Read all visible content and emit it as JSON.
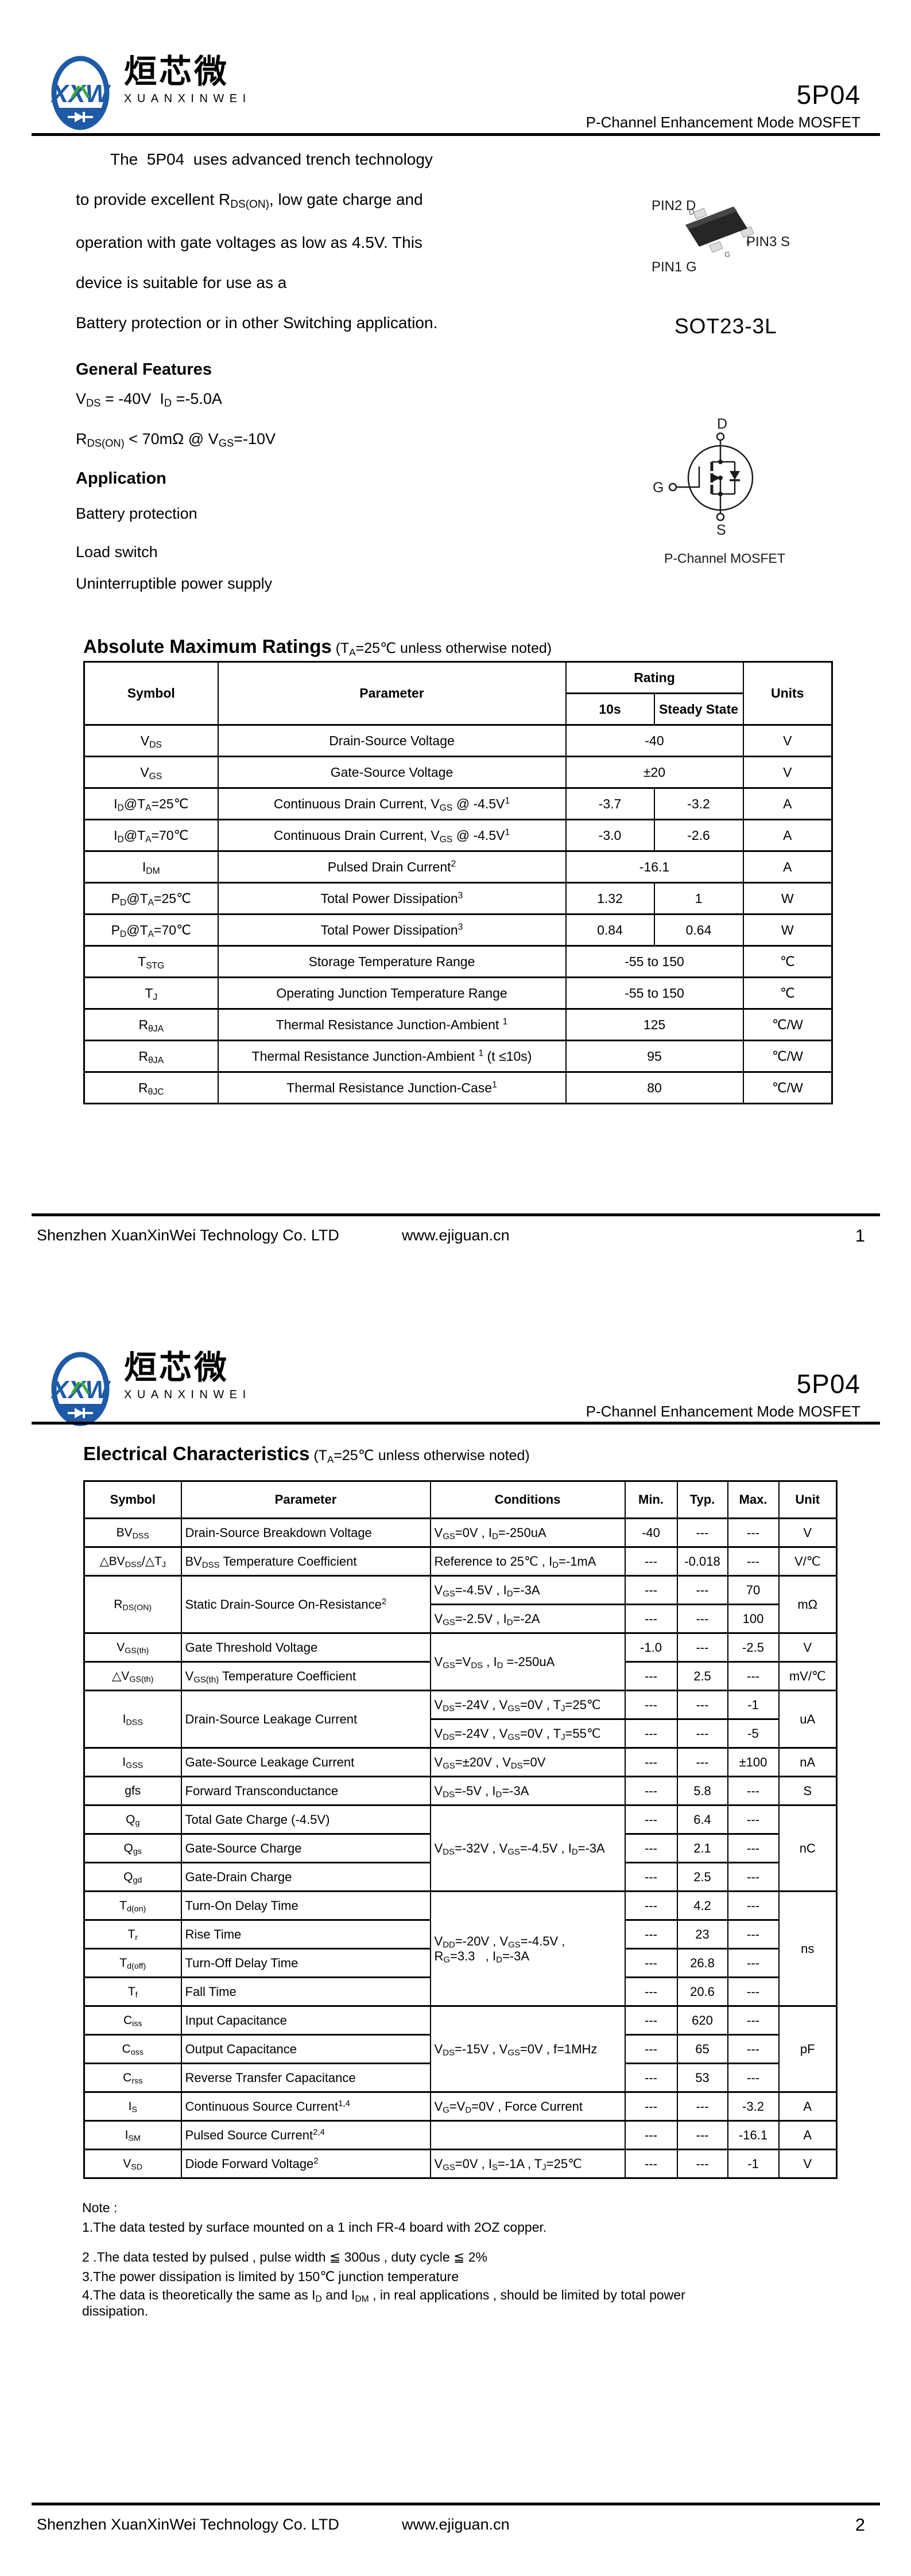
{
  "header": {
    "logo_mark": "XXW",
    "brand_cn": "烜芯微",
    "brand_en": "XUANXINWEI",
    "part_number": "5P04",
    "subtitle": "P-Channel Enhancement Mode MOSFET"
  },
  "intro": {
    "line1": "The  5P04  uses advanced trench technology",
    "line2": "to provide excellent R_{DS(ON)}, low gate charge and",
    "line3": "operation with gate voltages as low as 4.5V. This",
    "line4": "device is suitable for use as a",
    "line5": "Battery protection or in other Switching application."
  },
  "package": {
    "pin2_label": "PIN2 D",
    "pin3_label": "PIN3 S",
    "pin1_label": "PIN1 G",
    "name": "SOT23-3L",
    "pin_d": "D",
    "pin_s": "s",
    "pin_g": "G"
  },
  "mosfet_symbol": {
    "d": "D",
    "g": "G",
    "s": "S",
    "caption": "P-Channel MOSFET"
  },
  "features": {
    "title": "General Features",
    "item1": "V_{DS} = -40V  I_{D} =-5.0A",
    "item2": "R_{DS(ON)} < 70mΩ @ V_{GS}=-10V"
  },
  "application": {
    "title": "Application",
    "items": [
      "Battery protection",
      "Load switch",
      "Uninterruptible power supply"
    ]
  },
  "amr": {
    "title": "Absolute Maximum Ratings",
    "title_note": " (T_{A}=25℃ unless otherwise noted)",
    "headers": {
      "symbol": "Symbol",
      "parameter": "Parameter",
      "rating": "Rating",
      "t10s": "10s",
      "steady": "Steady State",
      "units": "Units"
    },
    "rows": [
      {
        "sym": "V_{DS}",
        "param": "Drain-Source Voltage",
        "r": "-40",
        "unit": "V"
      },
      {
        "sym": "V_{GS}",
        "param": "Gate-Source Voltage",
        "r": "±20",
        "unit": "V"
      },
      {
        "sym": "I_{D}@T_{A}=25℃",
        "param": "Continuous Drain Current, V_{GS} @ -4.5V^{1}",
        "r10": "-3.7",
        "rss": "-3.2",
        "unit": "A"
      },
      {
        "sym": "I_{D}@T_{A}=70℃",
        "param": "Continuous Drain Current, V_{GS} @ -4.5V^{1}",
        "r10": "-3.0",
        "rss": "-2.6",
        "unit": "A"
      },
      {
        "sym": "I_{DM}",
        "param": "Pulsed Drain Current^{2}",
        "r": "-16.1",
        "unit": "A"
      },
      {
        "sym": "P_{D}@T_{A}=25℃",
        "param": "Total Power Dissipation^{3}",
        "r10": "1.32",
        "rss": "1",
        "unit": "W"
      },
      {
        "sym": "P_{D}@T_{A}=70℃",
        "param": "Total Power Dissipation^{3}",
        "r10": "0.84",
        "rss": "0.64",
        "unit": "W"
      },
      {
        "sym": "T_{STG}",
        "param": "Storage Temperature Range",
        "r": "-55 to 150",
        "unit": "℃"
      },
      {
        "sym": "T_{J}",
        "param": "Operating Junction Temperature Range",
        "r": "-55 to 150",
        "unit": "℃"
      },
      {
        "sym": "R_{θJA}",
        "param": "Thermal Resistance Junction-Ambient ^{1}",
        "r": "125",
        "unit": "℃/W"
      },
      {
        "sym": "R_{θJA}",
        "param": "Thermal Resistance Junction-Ambient ^{1} (t ≤10s)",
        "r": "95",
        "unit": "℃/W"
      },
      {
        "sym": "R_{θJC}",
        "param": "Thermal Resistance Junction-Case^{1}",
        "r": "80",
        "unit": "℃/W"
      }
    ]
  },
  "ec": {
    "title": "Electrical Characteristics",
    "title_note": " (T_{A}=25℃ unless otherwise noted)",
    "headers": {
      "symbol": "Symbol",
      "parameter": "Parameter",
      "conditions": "Conditions",
      "min": "Min.",
      "typ": "Typ.",
      "max": "Max.",
      "unit": "Unit"
    },
    "rows": [
      {
        "sym": "BV_{DSS}",
        "param": "Drain-Source Breakdown Voltage",
        "cond": "V_{GS}=0V , I_{D}=-250uA",
        "min": "-40",
        "typ": "---",
        "max": "---",
        "unit": "V"
      },
      {
        "sym": "△BV_{DSS}/△T_{J}",
        "param": "BV_{DSS} Temperature Coefficient",
        "cond": "Reference to 25℃ , I_{D}=-1mA",
        "min": "---",
        "typ": "-0.018",
        "max": "---",
        "unit": "V/℃"
      },
      {
        "sym": "R_{DS(ON)}",
        "param": "Static Drain-Source On-Resistance^{2}",
        "cond": "V_{GS}=-4.5V , I_{D}=-3A",
        "min": "---",
        "typ": "---",
        "max": "70",
        "unit": "mΩ"
      },
      {
        "cond": "V_{GS}=-2.5V , I_{D}=-2A",
        "min": "---",
        "typ": "---",
        "max": "100"
      },
      {
        "sym": "V_{GS(th)}",
        "param": "Gate Threshold Voltage",
        "cond": "V_{GS}=V_{DS} , I_{D} =-250uA",
        "min": "-1.0",
        "typ": "---",
        "max": "-2.5",
        "unit": "V"
      },
      {
        "sym": "△V_{GS(th)}",
        "param": "V_{GS(th)} Temperature Coefficient",
        "min": "---",
        "typ": "2.5",
        "max": "---",
        "unit": "mV/℃"
      },
      {
        "sym": "I_{DSS}",
        "param": "Drain-Source Leakage Current",
        "cond": "V_{DS}=-24V , V_{GS}=0V , T_{J}=25℃",
        "min": "---",
        "typ": "---",
        "max": "-1",
        "unit": "uA"
      },
      {
        "cond": "V_{DS}=-24V , V_{GS}=0V , T_{J}=55℃",
        "min": "---",
        "typ": "---",
        "max": "-5"
      },
      {
        "sym": "I_{GSS}",
        "param": "Gate-Source Leakage Current",
        "cond": "V_{GS}=±20V , V_{DS}=0V",
        "min": "---",
        "typ": "---",
        "max": "±100",
        "unit": "nA"
      },
      {
        "sym": "gfs",
        "param": "Forward Transconductance",
        "cond": "V_{DS}=-5V , I_{D}=-3A",
        "min": "---",
        "typ": "5.8",
        "max": "---",
        "unit": "S"
      },
      {
        "sym": "Q_{g}",
        "param": "Total Gate Charge (-4.5V)",
        "cond": "V_{DS}=-32V , V_{GS}=-4.5V , I_{D}=-3A",
        "min": "---",
        "typ": "6.4",
        "max": "---",
        "unit": "nC"
      },
      {
        "sym": "Q_{gs}",
        "param": "Gate-Source Charge",
        "min": "---",
        "typ": "2.1",
        "max": "---"
      },
      {
        "sym": "Q_{gd}",
        "param": "Gate-Drain Charge",
        "min": "---",
        "typ": "2.5",
        "max": "---"
      },
      {
        "sym": "T_{d(on)}",
        "param": "Turn-On Delay Time",
        "cond1": "V_{DD}=-20V , V_{GS}=-4.5V ,",
        "cond2": "R_{G}=3.3   , I_{D}=-3A",
        "min": "---",
        "typ": "4.2",
        "max": "---",
        "unit": "ns"
      },
      {
        "sym": "T_{r}",
        "param": "Rise Time",
        "min": "---",
        "typ": "23",
        "max": "---"
      },
      {
        "sym": "T_{d(off)}",
        "param": "Turn-Off Delay Time",
        "min": "---",
        "typ": "26.8",
        "max": "---"
      },
      {
        "sym": "T_{f}",
        "param": "Fall Time",
        "min": "---",
        "typ": "20.6",
        "max": "---"
      },
      {
        "sym": "C_{iss}",
        "param": "Input Capacitance",
        "cond": "V_{DS}=-15V , V_{GS}=0V , f=1MHz",
        "min": "---",
        "typ": "620",
        "max": "---",
        "unit": "pF"
      },
      {
        "sym": "C_{oss}",
        "param": "Output Capacitance",
        "min": "---",
        "typ": "65",
        "max": "---"
      },
      {
        "sym": "C_{rss}",
        "param": "Reverse Transfer Capacitance",
        "min": "---",
        "typ": "53",
        "max": "---"
      },
      {
        "sym": "I_{S}",
        "param": "Continuous Source Current^{1,4}",
        "cond": "V_{G}=V_{D}=0V , Force Current",
        "min": "---",
        "typ": "---",
        "max": "-3.2",
        "unit": "A"
      },
      {
        "sym": "I_{SM}",
        "param": "Pulsed Source Current^{2,4}",
        "cond": "",
        "min": "---",
        "typ": "---",
        "max": "-16.1",
        "unit": "A"
      },
      {
        "sym": "V_{SD}",
        "param": "Diode Forward Voltage^{2}",
        "cond": "V_{GS}=0V , I_{S}=-1A , T_{J}=25℃",
        "min": "---",
        "typ": "---",
        "max": "-1",
        "unit": "V"
      }
    ]
  },
  "notes": {
    "label": "Note :",
    "n1": "1.The data tested by surface mounted on a 1 inch FR-4 board with 2OZ copper.",
    "n2": "2 .The data tested by pulsed , pulse width ≦ 300us , duty cycle ≦ 2%",
    "n3": "3.The power dissipation is limited by 150℃ junction temperature",
    "n4": "4.The data is theoretically the same as I_{D} and I_{DM} , in real applications , should be limited by total power",
    "n4b": "dissipation."
  },
  "footer": {
    "company": "Shenzhen XuanXinWei Technology Co. LTD",
    "website": "www.ejiguan.cn",
    "page1": "1",
    "page2": "2"
  }
}
